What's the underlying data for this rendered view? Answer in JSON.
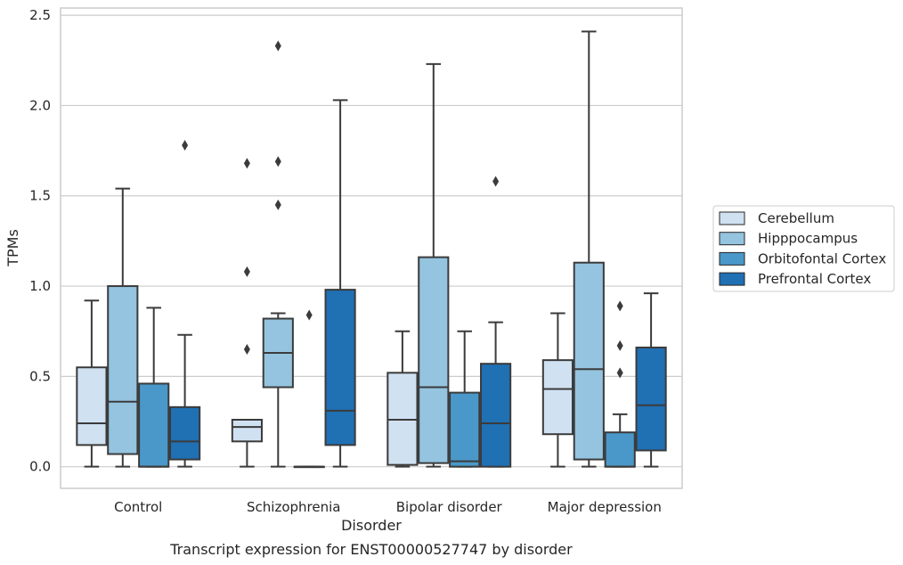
{
  "caption": "Transcript expression for ENST00000527747 by disorder",
  "chart_data": {
    "type": "box",
    "xlabel": "Disorder",
    "ylabel": "TPMs",
    "ylim": [
      -0.12,
      2.54
    ],
    "yticks": [
      "0.0",
      "0.5",
      "1.0",
      "1.5",
      "2.0",
      "2.5"
    ],
    "ytick_values": [
      0,
      0.5,
      1.0,
      1.5,
      2.0,
      2.5
    ],
    "grid": "horizontal",
    "legend_placement": "right",
    "categories": [
      "Control",
      "Schizophrenia",
      "Bipolar disorder",
      "Major depression"
    ],
    "series": [
      {
        "name": "Cerebellum",
        "color": "#d0e1f2",
        "boxes": [
          {
            "whislo": 0.0,
            "q1": 0.12,
            "med": 0.24,
            "q3": 0.55,
            "whishi": 0.92,
            "fliers": []
          },
          {
            "whislo": 0.0,
            "q1": 0.14,
            "med": 0.22,
            "q3": 0.26,
            "whishi": 0.26,
            "fliers": [
              0.65,
              1.08,
              1.68
            ]
          },
          {
            "whislo": 0.0,
            "q1": 0.01,
            "med": 0.26,
            "q3": 0.52,
            "whishi": 0.75,
            "fliers": []
          },
          {
            "whislo": 0.0,
            "q1": 0.18,
            "med": 0.43,
            "q3": 0.59,
            "whishi": 0.85,
            "fliers": []
          }
        ]
      },
      {
        "name": "Hipppocampus",
        "color": "#94c4df",
        "boxes": [
          {
            "whislo": 0.0,
            "q1": 0.07,
            "med": 0.36,
            "q3": 1.0,
            "whishi": 1.54,
            "fliers": []
          },
          {
            "whislo": 0.0,
            "q1": 0.44,
            "med": 0.63,
            "q3": 0.82,
            "whishi": 0.85,
            "fliers": [
              1.45,
              1.69,
              2.33
            ]
          },
          {
            "whislo": 0.0,
            "q1": 0.02,
            "med": 0.44,
            "q3": 1.16,
            "whishi": 2.23,
            "fliers": []
          },
          {
            "whislo": 0.0,
            "q1": 0.04,
            "med": 0.54,
            "q3": 1.13,
            "whishi": 2.41,
            "fliers": []
          }
        ]
      },
      {
        "name": "Orbitofontal Cortex",
        "color": "#4a98c9",
        "boxes": [
          {
            "whislo": 0.0,
            "q1": 0.0,
            "med": 0.0,
            "q3": 0.46,
            "whishi": 0.88,
            "fliers": []
          },
          {
            "whislo": 0.0,
            "q1": 0.0,
            "med": 0.0,
            "q3": 0.0,
            "whishi": 0.0,
            "fliers": [
              0.84
            ]
          },
          {
            "whislo": 0.0,
            "q1": 0.0,
            "med": 0.03,
            "q3": 0.41,
            "whishi": 0.75,
            "fliers": []
          },
          {
            "whislo": 0.0,
            "q1": 0.0,
            "med": 0.0,
            "q3": 0.19,
            "whishi": 0.29,
            "fliers": [
              0.52,
              0.67,
              0.89
            ]
          }
        ]
      },
      {
        "name": "Prefrontal Cortex",
        "color": "#2070b4",
        "boxes": [
          {
            "whislo": 0.0,
            "q1": 0.04,
            "med": 0.14,
            "q3": 0.33,
            "whishi": 0.73,
            "fliers": [
              1.78
            ]
          },
          {
            "whislo": 0.0,
            "q1": 0.12,
            "med": 0.31,
            "q3": 0.98,
            "whishi": 2.03,
            "fliers": []
          },
          {
            "whislo": 0.0,
            "q1": 0.0,
            "med": 0.24,
            "q3": 0.57,
            "whishi": 0.8,
            "fliers": [
              1.58
            ]
          },
          {
            "whislo": 0.0,
            "q1": 0.09,
            "med": 0.34,
            "q3": 0.66,
            "whishi": 0.96,
            "fliers": []
          }
        ]
      }
    ]
  }
}
